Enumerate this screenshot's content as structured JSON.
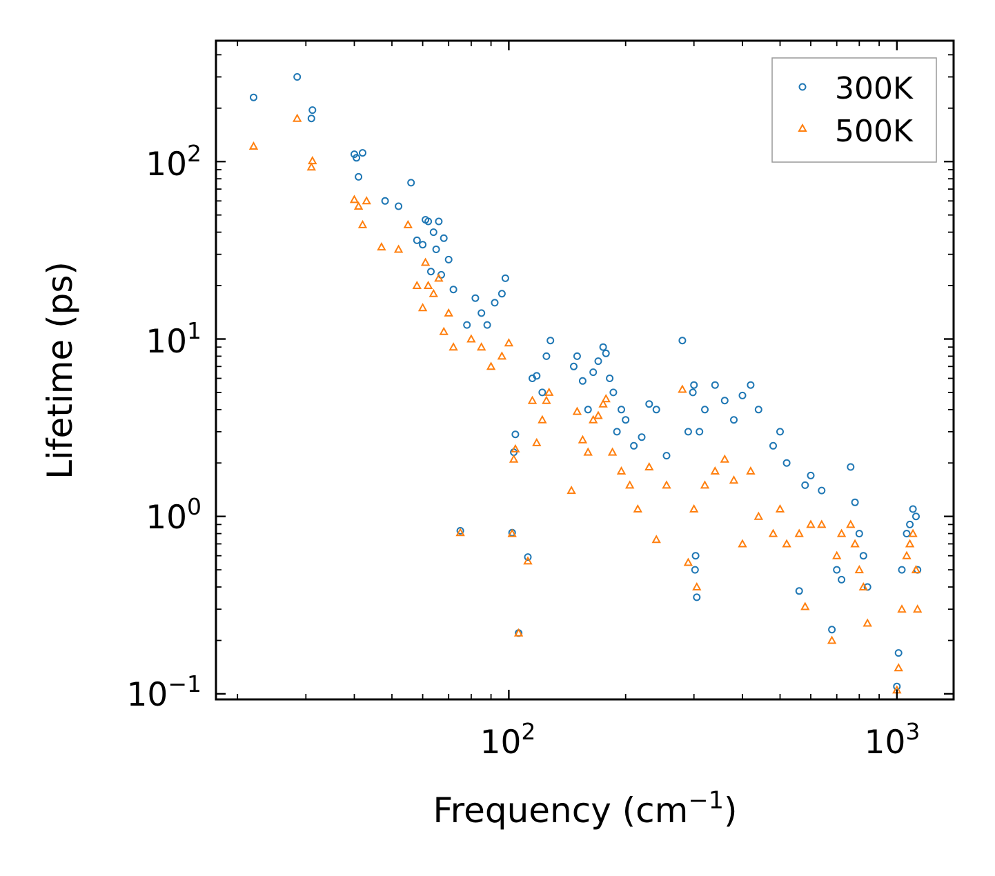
{
  "chart_data": {
    "type": "scatter",
    "xscale": "log",
    "yscale": "log",
    "xlabel": "Frequency (cm",
    "xlabel_sup": "−1",
    "xlabel_end": ")",
    "ylabel": "Lifetime (ps)",
    "xlim": [
      17.6,
      1400
    ],
    "ylim": [
      0.093,
      480
    ],
    "xticks": [
      {
        "value": 100,
        "base": "10",
        "exp": "2"
      },
      {
        "value": 1000,
        "base": "10",
        "exp": "3"
      }
    ],
    "yticks": [
      {
        "value": 0.1,
        "base": "10",
        "exp": "−1"
      },
      {
        "value": 1,
        "base": "10",
        "exp": "0"
      },
      {
        "value": 10,
        "base": "10",
        "exp": "1"
      },
      {
        "value": 100,
        "base": "10",
        "exp": "2"
      }
    ],
    "legend": {
      "position": "top-right"
    },
    "series": [
      {
        "name": "300K",
        "color": "#1f77b4",
        "marker": "circle",
        "points": [
          [
            22,
            230
          ],
          [
            28.5,
            300
          ],
          [
            31,
            175
          ],
          [
            31.2,
            195
          ],
          [
            40,
            110
          ],
          [
            40.5,
            105
          ],
          [
            42,
            112
          ],
          [
            41,
            82
          ],
          [
            48,
            60
          ],
          [
            52,
            56
          ],
          [
            56,
            76
          ],
          [
            58,
            36
          ],
          [
            60,
            34
          ],
          [
            61,
            47
          ],
          [
            62,
            46
          ],
          [
            64,
            40
          ],
          [
            66,
            46
          ],
          [
            63,
            24
          ],
          [
            65,
            32
          ],
          [
            67,
            23
          ],
          [
            68,
            37
          ],
          [
            70,
            28
          ],
          [
            72,
            19
          ],
          [
            75,
            0.83
          ],
          [
            78,
            12
          ],
          [
            82,
            17
          ],
          [
            85,
            14
          ],
          [
            88,
            12
          ],
          [
            92,
            16
          ],
          [
            96,
            18
          ],
          [
            98,
            22
          ],
          [
            102,
            0.81
          ],
          [
            104,
            2.9
          ],
          [
            103,
            2.3
          ],
          [
            106,
            0.22
          ],
          [
            112,
            0.59
          ],
          [
            115,
            6
          ],
          [
            118,
            6.2
          ],
          [
            122,
            5
          ],
          [
            125,
            8
          ],
          [
            128,
            9.8
          ],
          [
            147,
            7
          ],
          [
            150,
            8
          ],
          [
            155,
            5.8
          ],
          [
            160,
            4
          ],
          [
            165,
            6.5
          ],
          [
            170,
            7.5
          ],
          [
            175,
            9
          ],
          [
            178,
            8.3
          ],
          [
            182,
            6
          ],
          [
            186,
            5
          ],
          [
            190,
            3
          ],
          [
            195,
            4
          ],
          [
            200,
            3.5
          ],
          [
            210,
            2.5
          ],
          [
            220,
            2.8
          ],
          [
            230,
            4.3
          ],
          [
            240,
            4
          ],
          [
            255,
            2.2
          ],
          [
            280,
            9.8
          ],
          [
            290,
            3
          ],
          [
            298,
            5
          ],
          [
            300,
            5.5
          ],
          [
            302,
            0.5
          ],
          [
            303,
            0.6
          ],
          [
            305,
            0.35
          ],
          [
            310,
            3
          ],
          [
            320,
            4
          ],
          [
            340,
            5.5
          ],
          [
            360,
            4.5
          ],
          [
            380,
            3.5
          ],
          [
            400,
            4.8
          ],
          [
            420,
            5.5
          ],
          [
            440,
            4
          ],
          [
            480,
            2.5
          ],
          [
            500,
            3
          ],
          [
            520,
            2
          ],
          [
            560,
            0.38
          ],
          [
            580,
            1.5
          ],
          [
            600,
            1.7
          ],
          [
            640,
            1.4
          ],
          [
            680,
            0.23
          ],
          [
            700,
            0.5
          ],
          [
            720,
            0.44
          ],
          [
            760,
            1.9
          ],
          [
            780,
            1.2
          ],
          [
            800,
            0.8
          ],
          [
            820,
            0.6
          ],
          [
            840,
            0.4
          ],
          [
            1000,
            0.11
          ],
          [
            1010,
            0.17
          ],
          [
            1030,
            0.5
          ],
          [
            1060,
            0.8
          ],
          [
            1080,
            0.9
          ],
          [
            1100,
            1.1
          ],
          [
            1120,
            1.0
          ],
          [
            1130,
            0.5
          ]
        ]
      },
      {
        "name": "500K",
        "color": "#ff7f0e",
        "marker": "triangle",
        "points": [
          [
            22,
            122
          ],
          [
            28.5,
            175
          ],
          [
            31,
            93
          ],
          [
            31.2,
            101
          ],
          [
            40,
            61
          ],
          [
            41,
            56
          ],
          [
            42,
            44
          ],
          [
            43,
            60
          ],
          [
            47,
            33
          ],
          [
            52,
            32
          ],
          [
            55,
            44
          ],
          [
            58,
            20
          ],
          [
            60,
            15
          ],
          [
            61,
            27
          ],
          [
            62,
            20
          ],
          [
            64,
            18
          ],
          [
            66,
            22
          ],
          [
            68,
            11
          ],
          [
            70,
            14
          ],
          [
            72,
            9
          ],
          [
            75,
            0.81
          ],
          [
            80,
            10
          ],
          [
            85,
            9
          ],
          [
            90,
            7
          ],
          [
            96,
            8
          ],
          [
            100,
            9.5
          ],
          [
            102,
            0.8
          ],
          [
            103,
            2.1
          ],
          [
            104,
            2.4
          ],
          [
            106,
            0.22
          ],
          [
            112,
            0.56
          ],
          [
            115,
            4.5
          ],
          [
            118,
            2.6
          ],
          [
            122,
            3.5
          ],
          [
            125,
            4.5
          ],
          [
            127,
            5
          ],
          [
            145,
            1.4
          ],
          [
            150,
            3.9
          ],
          [
            155,
            2.7
          ],
          [
            160,
            2.3
          ],
          [
            165,
            3.5
          ],
          [
            170,
            3.7
          ],
          [
            175,
            4.3
          ],
          [
            178,
            4.6
          ],
          [
            185,
            2.3
          ],
          [
            195,
            1.8
          ],
          [
            205,
            1.5
          ],
          [
            215,
            1.1
          ],
          [
            230,
            1.9
          ],
          [
            240,
            0.74
          ],
          [
            255,
            1.5
          ],
          [
            280,
            5.2
          ],
          [
            290,
            0.55
          ],
          [
            300,
            1.1
          ],
          [
            305,
            0.4
          ],
          [
            320,
            1.5
          ],
          [
            340,
            1.8
          ],
          [
            360,
            2.1
          ],
          [
            380,
            1.6
          ],
          [
            400,
            0.7
          ],
          [
            420,
            1.8
          ],
          [
            440,
            1.0
          ],
          [
            480,
            0.8
          ],
          [
            500,
            1.1
          ],
          [
            520,
            0.7
          ],
          [
            560,
            0.8
          ],
          [
            580,
            0.31
          ],
          [
            600,
            0.9
          ],
          [
            640,
            0.9
          ],
          [
            680,
            0.2
          ],
          [
            700,
            0.6
          ],
          [
            720,
            0.8
          ],
          [
            760,
            0.9
          ],
          [
            780,
            0.7
          ],
          [
            800,
            0.5
          ],
          [
            820,
            0.4
          ],
          [
            840,
            0.25
          ],
          [
            1000,
            0.105
          ],
          [
            1010,
            0.14
          ],
          [
            1030,
            0.3
          ],
          [
            1060,
            0.6
          ],
          [
            1080,
            0.7
          ],
          [
            1100,
            0.8
          ],
          [
            1120,
            0.5
          ],
          [
            1130,
            0.3
          ]
        ]
      }
    ]
  }
}
